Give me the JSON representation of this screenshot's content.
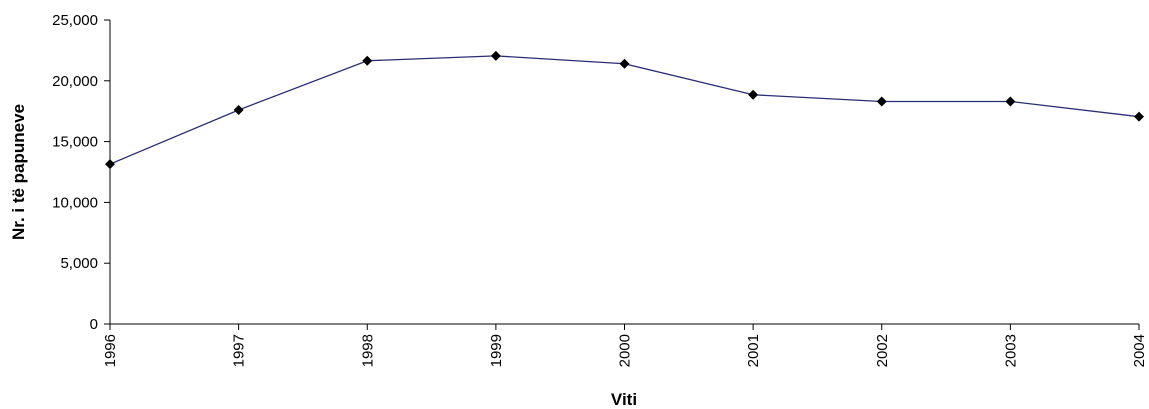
{
  "chart_data": {
    "type": "line",
    "title": "",
    "xlabel": "Viti",
    "ylabel": "Nr. i të papuneve",
    "categories": [
      "1996",
      "1997",
      "1998",
      "1999",
      "2000",
      "2001",
      "2002",
      "2003",
      "2004"
    ],
    "series": [
      {
        "values": [
          13150,
          17600,
          21650,
          22050,
          21400,
          18850,
          18300,
          18300,
          17050
        ],
        "color": "#2b2d73",
        "marker": "diamond",
        "marker_color": "#000000"
      }
    ],
    "ylim": [
      0,
      25000
    ],
    "yticks": [
      0,
      5000,
      10000,
      15000,
      20000,
      25000
    ],
    "ytick_labels": [
      "0",
      "5,000",
      "10,000",
      "15,000",
      "20,000",
      "25,000"
    ],
    "grid": false,
    "legend": "none"
  }
}
